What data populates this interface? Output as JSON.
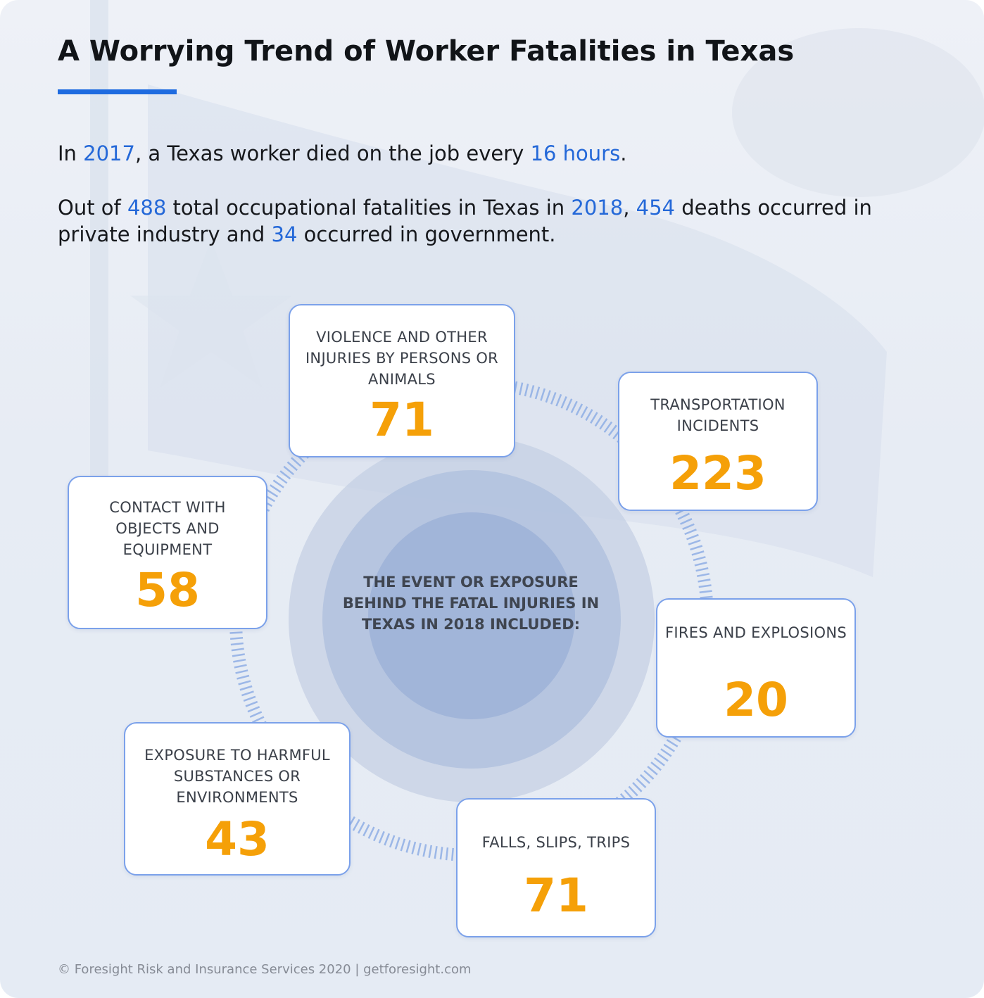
{
  "title": "A Worrying Trend of Worker Fatalities in Texas",
  "paragraph1": {
    "t1": "In ",
    "year": "2017",
    "t2": ", a Texas worker died on the job every ",
    "hours": "16 hours",
    "t3": "."
  },
  "paragraph2": {
    "t1": "Out of ",
    "total": "488",
    "t2": " total occupational fatalities in Texas in ",
    "year": "2018",
    "t3": ", ",
    "private": "454",
    "t4": " deaths occurred in private industry and ",
    "government": "34",
    "t5": " occurred in government."
  },
  "center": {
    "label": "THE EVENT OR EXPOSURE BEHIND THE FATAL INJURIES IN TEXAS IN 2018 INCLUDED:"
  },
  "categories": [
    {
      "label": "VIOLENCE AND OTHER INJURIES BY PERSONS OR ANIMALS",
      "value": "71"
    },
    {
      "label": "TRANSPORTATION INCIDENTS",
      "value": "223"
    },
    {
      "label": "FIRES AND EXPLOSIONS",
      "value": "20"
    },
    {
      "label": "FALLS, SLIPS, TRIPS",
      "value": "71"
    },
    {
      "label": "EXPOSURE TO HARMFUL SUBSTANCES OR ENVIRONMENTS",
      "value": "43"
    },
    {
      "label": "CONTACT WITH OBJECTS AND EQUIPMENT",
      "value": "58"
    }
  ],
  "footer": "© Foresight Risk and Insurance Services 2020 | getforesight.com",
  "colors": {
    "accent": "#1e6be0",
    "highlight": "#2468d8",
    "value": "#f5a008",
    "card_border": "#7ba1ea"
  }
}
